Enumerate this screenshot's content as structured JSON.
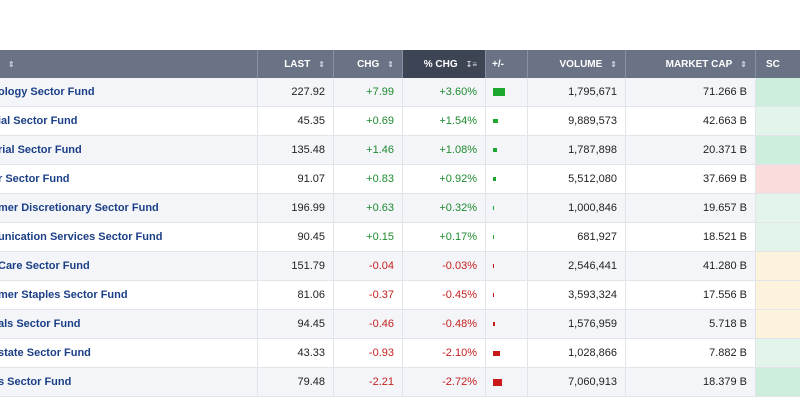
{
  "header": {
    "name": "",
    "last": "LAST",
    "chg": "CHG",
    "pct_chg": "% CHG",
    "bar": "+/-",
    "volume": "VOLUME",
    "market_cap": "MARKET CAP",
    "score": "SC"
  },
  "colors": {
    "positive": "#1f8a2e",
    "negative": "#c62020",
    "header_bg": "#6a7385",
    "active_header_bg": "#3d4454",
    "link": "#1b3f86"
  },
  "rows": [
    {
      "name": "ology Sector Fund",
      "last": "227.92",
      "chg": "+7.99",
      "pct": "+3.60%",
      "pct_value": 3.6,
      "volume": "1,795,671",
      "cap": "71.266 B",
      "score_color": "#cdeedd"
    },
    {
      "name": "ial Sector Fund",
      "last": "45.35",
      "chg": "+0.69",
      "pct": "+1.54%",
      "pct_value": 1.54,
      "volume": "9,889,573",
      "cap": "42.663 B",
      "score_color": "#e3f5ea"
    },
    {
      "name": "rial Sector Fund",
      "last": "135.48",
      "chg": "+1.46",
      "pct": "+1.08%",
      "pct_value": 1.08,
      "volume": "1,787,898",
      "cap": "20.371 B",
      "score_color": "#cdeedd"
    },
    {
      "name": "r Sector Fund",
      "last": "91.07",
      "chg": "+0.83",
      "pct": "+0.92%",
      "pct_value": 0.92,
      "volume": "5,512,080",
      "cap": "37.669 B",
      "score_color": "#fbdcdc"
    },
    {
      "name": "mer Discretionary Sector Fund",
      "last": "196.99",
      "chg": "+0.63",
      "pct": "+0.32%",
      "pct_value": 0.32,
      "volume": "1,000,846",
      "cap": "19.657 B",
      "score_color": "#e3f5ea"
    },
    {
      "name": "unication Services Sector Fund",
      "last": "90.45",
      "chg": "+0.15",
      "pct": "+0.17%",
      "pct_value": 0.17,
      "volume": "681,927",
      "cap": "18.521 B",
      "score_color": "#e3f5ea"
    },
    {
      "name": "Care Sector Fund",
      "last": "151.79",
      "chg": "-0.04",
      "pct": "-0.03%",
      "pct_value": -0.03,
      "volume": "2,546,441",
      "cap": "41.280 B",
      "score_color": "#fdf3dc"
    },
    {
      "name": "mer Staples Sector Fund",
      "last": "81.06",
      "chg": "-0.37",
      "pct": "-0.45%",
      "pct_value": -0.45,
      "volume": "3,593,324",
      "cap": "17.556 B",
      "score_color": "#fdf3dc"
    },
    {
      "name": "als Sector Fund",
      "last": "94.45",
      "chg": "-0.46",
      "pct": "-0.48%",
      "pct_value": -0.48,
      "volume": "1,576,959",
      "cap": "5.718 B",
      "score_color": "#fdf3dc"
    },
    {
      "name": "state Sector Fund",
      "last": "43.33",
      "chg": "-0.93",
      "pct": "-2.10%",
      "pct_value": -2.1,
      "volume": "1,028,866",
      "cap": "7.882 B",
      "score_color": "#e3f5ea"
    },
    {
      "name": "s Sector Fund",
      "last": "79.48",
      "chg": "-2.21",
      "pct": "-2.72%",
      "pct_value": -2.72,
      "volume": "7,060,913",
      "cap": "18.379 B",
      "score_color": "#cdeedd"
    }
  ]
}
